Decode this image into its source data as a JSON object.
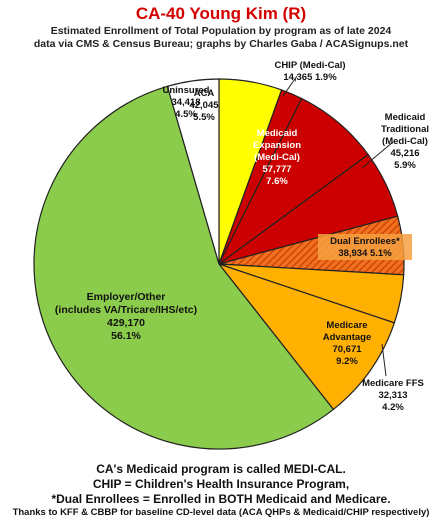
{
  "header": {
    "title": "CA-40 Young Kim (R)",
    "subtitle_line1": "Estimated Enrollment of Total Population by program as of late 2024",
    "subtitle_line2": "data via CMS & Census Bureau; graphs by Charles Gaba / ACASignups.net"
  },
  "chart_data": {
    "type": "pie",
    "title": "CA-40 Young Kim (R)",
    "slices": [
      {
        "label": "ACA",
        "value": 42045,
        "value_text": "42,045",
        "pct_text": "5.5%",
        "color": "#ffff00",
        "text_color": "#111111",
        "hatched": false
      },
      {
        "label": "CHIP (Medi-Cal)",
        "value": 14365,
        "value_text": "14,365",
        "pct_text": "1.9%",
        "color": "#cc0000",
        "text_color": "#111111",
        "hatched": false
      },
      {
        "label": "Medicaid Expansion (Medi-Cal)",
        "value": 57777,
        "value_text": "57,777",
        "pct_text": "7.6%",
        "color": "#cc0000",
        "text_color": "#ffffff",
        "hatched": false
      },
      {
        "label": "Medicaid Traditional (Medi-Cal)",
        "value": 45216,
        "value_text": "45,216",
        "pct_text": "5.9%",
        "color": "#cc0000",
        "text_color": "#111111",
        "hatched": false
      },
      {
        "label": "Dual Enrollees*",
        "value": 38934,
        "value_text": "38,934",
        "pct_text": "5.1%",
        "color": "#e8641a",
        "text_color": "#111111",
        "hatched": true
      },
      {
        "label": "Medicare FFS",
        "value": 32313,
        "value_text": "32,313",
        "pct_text": "4.2%",
        "color": "#ffb000",
        "text_color": "#111111",
        "hatched": false
      },
      {
        "label": "Medicare Advantage",
        "value": 70671,
        "value_text": "70,671",
        "pct_text": "9.2%",
        "color": "#ffb000",
        "text_color": "#111111",
        "hatched": false
      },
      {
        "label": "Employer/Other (includes VA/Tricare/IHS/etc)",
        "value": 429170,
        "value_text": "429,170",
        "pct_text": "56.1%",
        "color": "#8ccc4c",
        "text_color": "#111111",
        "hatched": false
      },
      {
        "label": "Uninsured",
        "value": 34418,
        "value_text": "34,418",
        "pct_text": "4.5%",
        "color": "#ffffff",
        "text_color": "#111111",
        "hatched": false
      }
    ],
    "legend": "none"
  },
  "footer": {
    "line1": "CA's Medicaid program is called MEDI-CAL.",
    "line2": "CHIP = Children's Health Insurance Program,",
    "line3": "*Dual Enrollees = Enrolled in BOTH Medicaid and Medicare.",
    "line4": "Thanks to KFF & CBBP for baseline CD-level data (ACA QHPs & Medicaid/CHIP respectively)"
  }
}
